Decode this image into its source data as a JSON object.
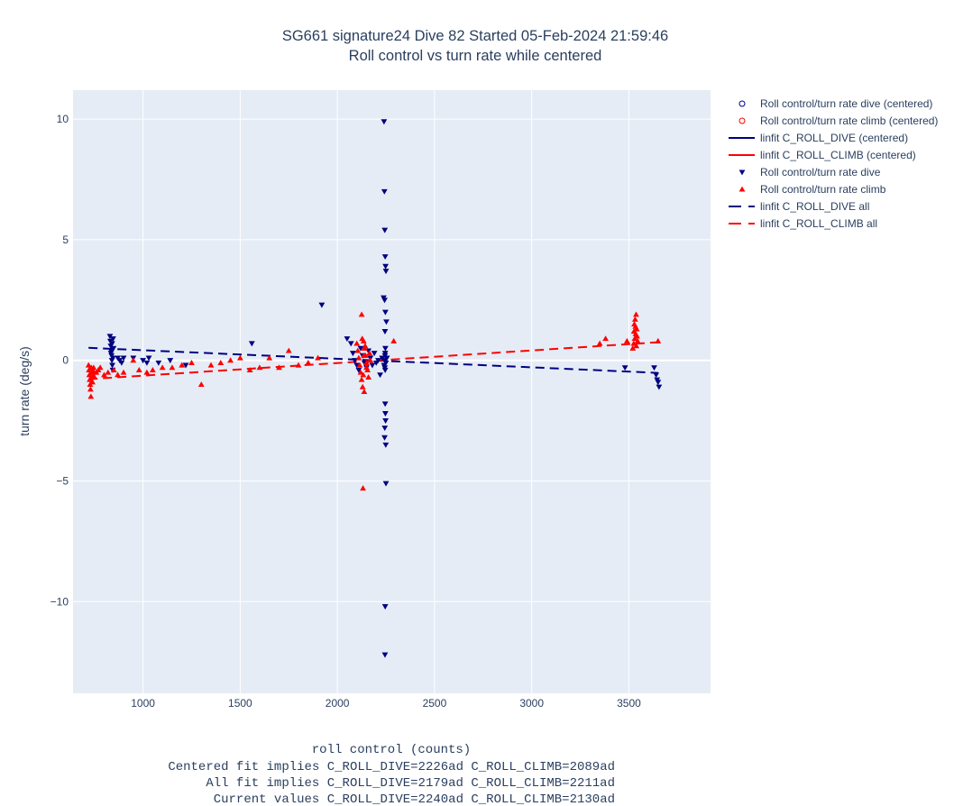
{
  "chart_data": {
    "type": "scatter",
    "title": "SG661 signature24 Dive 82 Started 05-Feb-2024 21:59:46",
    "subtitle": "Roll control vs turn rate while centered",
    "xlabel": "roll control (counts)",
    "ylabel": "turn rate (deg/s)",
    "xlim": [
      640,
      3920
    ],
    "ylim": [
      -13.8,
      11.2
    ],
    "xticks": [
      1000,
      1500,
      2000,
      2500,
      3000,
      3500
    ],
    "yticks": [
      -10,
      -5,
      0,
      5,
      10
    ],
    "ytick_labels": [
      "−10",
      "−5",
      "0",
      "5",
      "10"
    ],
    "grid": true,
    "legend_position": "right",
    "notes": [
      "Centered fit implies C_ROLL_DIVE=2226ad C_ROLL_CLIMB=2089ad",
      "All fit implies C_ROLL_DIVE=2179ad C_ROLL_CLIMB=2211ad",
      "Current values C_ROLL_DIVE=2240ad C_ROLL_CLIMB=2130ad"
    ],
    "series": [
      {
        "name": "Roll control/turn rate dive (centered)",
        "kind": "marker",
        "marker": "circle-open",
        "color": "#000080",
        "x": [],
        "y": []
      },
      {
        "name": "Roll control/turn rate climb (centered)",
        "kind": "marker",
        "marker": "circle-open",
        "color": "#ff0000",
        "x": [],
        "y": []
      },
      {
        "name": "linfit C_ROLL_DIVE (centered)",
        "kind": "line",
        "dash": "solid",
        "color": "#000080",
        "x": [],
        "y": []
      },
      {
        "name": "linfit C_ROLL_CLIMB (centered)",
        "kind": "line",
        "dash": "solid",
        "color": "#ff0000",
        "x": [],
        "y": []
      },
      {
        "name": "Roll control/turn rate dive",
        "kind": "marker",
        "marker": "triangle-down",
        "color": "#000080",
        "x": [
          830,
          832,
          834,
          836,
          838,
          840,
          842,
          844,
          846,
          848,
          835,
          841,
          845,
          870,
          880,
          890,
          900,
          950,
          1000,
          1020,
          1030,
          1080,
          1140,
          1220,
          1560,
          1920,
          2050,
          2070,
          2080,
          2090,
          2100,
          2110,
          2120,
          2130,
          2140,
          2150,
          2160,
          2170,
          2180,
          2190,
          2200,
          2210,
          2220,
          2230,
          2240,
          2245,
          2250,
          2255,
          2240,
          2242,
          2244,
          2246,
          2248,
          2250,
          2238,
          2243,
          2247,
          2252,
          2245,
          2246,
          2247,
          2248,
          2244,
          2243,
          2249,
          2250,
          2246,
          2245,
          2246,
          2244,
          2247,
          2246,
          2245,
          3480,
          3630,
          3640,
          3645,
          3650,
          3655
        ],
        "y": [
          1.0,
          0.8,
          0.6,
          0.4,
          0.2,
          0.0,
          -0.2,
          -0.4,
          0.9,
          0.5,
          0.3,
          0.7,
          0.1,
          0.1,
          0.0,
          -0.1,
          0.1,
          0.1,
          0.0,
          -0.1,
          0.1,
          -0.1,
          0.0,
          -0.2,
          0.7,
          2.3,
          0.9,
          0.7,
          0.3,
          0.0,
          -0.2,
          -0.4,
          0.5,
          0.2,
          -0.1,
          -0.3,
          0.4,
          0.1,
          -0.2,
          0.3,
          -0.1,
          0.0,
          -0.6,
          0.1,
          -0.2,
          0.2,
          -0.1,
          0.1,
          9.9,
          7.0,
          5.4,
          4.3,
          3.9,
          3.7,
          2.6,
          2.5,
          2.0,
          1.6,
          1.2,
          -1.8,
          -2.2,
          -2.5,
          -2.8,
          -3.2,
          -3.5,
          -5.1,
          -10.2,
          -12.2,
          0.3,
          -0.3,
          0.5,
          -0.4,
          0.0,
          -0.3,
          -0.3,
          -0.6,
          -0.8,
          -0.9,
          -1.1
        ]
      },
      {
        "name": "Roll control/turn rate climb",
        "kind": "marker",
        "marker": "triangle-up",
        "color": "#ff0000",
        "x": [
          720,
          722,
          724,
          726,
          728,
          730,
          732,
          734,
          736,
          738,
          740,
          742,
          744,
          746,
          748,
          750,
          760,
          770,
          780,
          800,
          820,
          850,
          870,
          900,
          950,
          980,
          1020,
          1050,
          1100,
          1150,
          1200,
          1250,
          1300,
          1350,
          1400,
          1450,
          1500,
          1550,
          1600,
          1650,
          1700,
          1750,
          1800,
          1850,
          1900,
          2100,
          2105,
          2110,
          2115,
          2120,
          2125,
          2130,
          2135,
          2140,
          2145,
          2150,
          2155,
          2160,
          2165,
          2170,
          2125,
          2132,
          2138,
          2143,
          2150,
          2128,
          2136,
          2133,
          2140,
          2290,
          3350,
          3380,
          3490,
          3520,
          3525,
          3530,
          3535,
          3540,
          3528,
          3532,
          3537,
          3542,
          3526,
          3534,
          3538,
          3545,
          3650
        ],
        "y": [
          -0.2,
          -0.4,
          -0.6,
          -0.8,
          -1.0,
          -1.2,
          -1.5,
          -0.3,
          -0.5,
          -0.7,
          -0.9,
          -0.4,
          -0.6,
          -0.3,
          -0.5,
          -0.7,
          -0.5,
          -0.4,
          -0.3,
          -0.6,
          -0.5,
          -0.4,
          -0.6,
          -0.5,
          0.0,
          -0.4,
          -0.5,
          -0.4,
          -0.3,
          -0.3,
          -0.2,
          -0.1,
          -1.0,
          -0.2,
          -0.1,
          0.0,
          0.1,
          -0.4,
          -0.3,
          0.1,
          -0.3,
          0.4,
          -0.2,
          -0.1,
          0.1,
          0.7,
          0.4,
          0.1,
          -0.2,
          -0.5,
          -0.8,
          -1.1,
          0.8,
          0.5,
          0.2,
          -0.1,
          -0.4,
          -0.7,
          0.3,
          0.0,
          1.9,
          -5.3,
          -1.3,
          0.6,
          -0.3,
          0.9,
          0.2,
          -0.6,
          0.5,
          0.8,
          0.7,
          0.9,
          0.8,
          0.5,
          0.7,
          0.9,
          1.1,
          1.3,
          1.5,
          1.7,
          1.9,
          1.0,
          1.2,
          1.4,
          0.6,
          0.8,
          0.8
        ]
      },
      {
        "name": "linfit C_ROLL_DIVE all",
        "kind": "line",
        "dash": "dash",
        "color": "#000080",
        "x": [
          720,
          3650
        ],
        "y": [
          0.52,
          -0.52
        ]
      },
      {
        "name": "linfit C_ROLL_CLIMB all",
        "kind": "line",
        "dash": "dash",
        "color": "#ff0000",
        "x": [
          720,
          3650
        ],
        "y": [
          -0.78,
          0.75
        ]
      }
    ]
  }
}
